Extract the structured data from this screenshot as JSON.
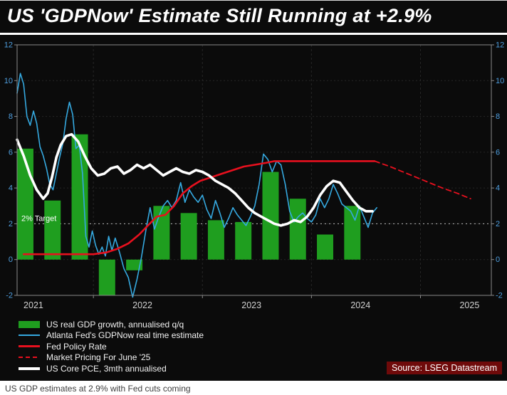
{
  "title": "US 'GDPNow' Estimate Still Running at +2.9%",
  "caption": "US GDP estimates at 2.9% with Fed cuts coming",
  "source_label": "Source: LSEG Datastream",
  "colors": {
    "panel_background": "#0b0b0b",
    "bars": "#1f9e1f",
    "gdpnow_line": "#35a9e0",
    "fed_line": "#e8101e",
    "market_pricing_line": "#e8101e",
    "core_pce_line": "#ffffff",
    "axis_labels": "#4f9fe0",
    "x_labels": "#d0d0d0",
    "grid": "#262626",
    "frame": "#8a8a8a",
    "target_line": "#bbbbbb",
    "source_bg": "#6f0a0a"
  },
  "legend": {
    "items": [
      {
        "label": "US real GDP growth, annualised q/q",
        "swatch": "bar",
        "color_key": "bars"
      },
      {
        "label": "Atlanta Fed's GDPNow real time estimate",
        "swatch": "line",
        "color_key": "gdpnow_line"
      },
      {
        "label": "Fed Policy Rate",
        "swatch": "line-thick",
        "color_key": "fed_line"
      },
      {
        "label": "Market Pricing For June '25",
        "swatch": "line-dashed",
        "color_key": "market_pricing_line"
      },
      {
        "label": "US Core PCE, 3mth annualised",
        "swatch": "line-xthick",
        "color_key": "core_pce_line"
      }
    ]
  },
  "chart_data": {
    "type": "bar+line",
    "title": "US 'GDPNow' Estimate Still Running at +2.9%",
    "x_range": [
      2021.3,
      2025.65
    ],
    "ylim": [
      -2,
      12
    ],
    "y_ticks": [
      -2,
      0,
      2,
      4,
      6,
      8,
      10,
      12
    ],
    "x_grid_years": [
      2022,
      2023,
      2024,
      2025
    ],
    "x_tick_labels": [
      {
        "x": 2021.45,
        "label": "2021"
      },
      {
        "x": 2022.45,
        "label": "2022"
      },
      {
        "x": 2023.45,
        "label": "2023"
      },
      {
        "x": 2024.45,
        "label": "2024"
      },
      {
        "x": 2025.45,
        "label": "2025"
      }
    ],
    "target_annotation": {
      "label": "2% Target",
      "y": 2
    },
    "bar_series": {
      "name": "US real GDP growth, annualised q/q",
      "color_key": "bars",
      "bar_width_years": 0.15,
      "points": [
        {
          "quarter": "2021 Q2",
          "x": 2021.375,
          "value": 6.2
        },
        {
          "quarter": "2021 Q3",
          "x": 2021.625,
          "value": 3.3
        },
        {
          "quarter": "2021 Q4",
          "x": 2021.875,
          "value": 7.0
        },
        {
          "quarter": "2022 Q1",
          "x": 2022.125,
          "value": -2.0
        },
        {
          "quarter": "2022 Q2",
          "x": 2022.375,
          "value": -0.6
        },
        {
          "quarter": "2022 Q3",
          "x": 2022.625,
          "value": 3.0
        },
        {
          "quarter": "2022 Q4",
          "x": 2022.875,
          "value": 2.6
        },
        {
          "quarter": "2023 Q1",
          "x": 2023.125,
          "value": 2.2
        },
        {
          "quarter": "2023 Q2",
          "x": 2023.375,
          "value": 2.1
        },
        {
          "quarter": "2023 Q3",
          "x": 2023.625,
          "value": 4.9
        },
        {
          "quarter": "2023 Q4",
          "x": 2023.875,
          "value": 3.4
        },
        {
          "quarter": "2024 Q1",
          "x": 2024.125,
          "value": 1.4
        },
        {
          "quarter": "2024 Q2",
          "x": 2024.375,
          "value": 3.0
        }
      ]
    },
    "line_series": [
      {
        "id": "gdpnow-line",
        "name": "Atlanta Fed's GDPNow real time estimate",
        "color_key": "gdpnow_line",
        "width": 1.6,
        "points": [
          [
            2021.3,
            9.3
          ],
          [
            2021.33,
            10.4
          ],
          [
            2021.36,
            9.8
          ],
          [
            2021.39,
            8.0
          ],
          [
            2021.42,
            7.5
          ],
          [
            2021.45,
            8.3
          ],
          [
            2021.48,
            7.6
          ],
          [
            2021.51,
            6.3
          ],
          [
            2021.54,
            5.8
          ],
          [
            2021.57,
            5.1
          ],
          [
            2021.6,
            4.2
          ],
          [
            2021.63,
            3.9
          ],
          [
            2021.66,
            4.8
          ],
          [
            2021.69,
            5.7
          ],
          [
            2021.72,
            6.5
          ],
          [
            2021.75,
            7.9
          ],
          [
            2021.78,
            8.8
          ],
          [
            2021.81,
            8.1
          ],
          [
            2021.84,
            6.2
          ],
          [
            2021.87,
            6.4
          ],
          [
            2021.9,
            4.8
          ],
          [
            2021.93,
            1.3
          ],
          [
            2021.96,
            0.7
          ],
          [
            2021.99,
            1.6
          ],
          [
            2022.02,
            0.8
          ],
          [
            2022.05,
            0.3
          ],
          [
            2022.08,
            0.7
          ],
          [
            2022.11,
            0.2
          ],
          [
            2022.14,
            1.3
          ],
          [
            2022.17,
            0.5
          ],
          [
            2022.2,
            1.2
          ],
          [
            2022.24,
            0.4
          ],
          [
            2022.28,
            -0.5
          ],
          [
            2022.32,
            -1.0
          ],
          [
            2022.36,
            -2.1
          ],
          [
            2022.4,
            -1.1
          ],
          [
            2022.44,
            0.1
          ],
          [
            2022.48,
            1.6
          ],
          [
            2022.52,
            2.9
          ],
          [
            2022.56,
            1.7
          ],
          [
            2022.6,
            2.4
          ],
          [
            2022.64,
            3.0
          ],
          [
            2022.68,
            3.3
          ],
          [
            2022.72,
            2.9
          ],
          [
            2022.76,
            3.3
          ],
          [
            2022.8,
            4.3
          ],
          [
            2022.84,
            3.2
          ],
          [
            2022.88,
            3.9
          ],
          [
            2022.92,
            3.5
          ],
          [
            2022.96,
            3.2
          ],
          [
            2023.0,
            3.6
          ],
          [
            2023.04,
            2.8
          ],
          [
            2023.08,
            2.3
          ],
          [
            2023.12,
            3.3
          ],
          [
            2023.16,
            2.6
          ],
          [
            2023.2,
            1.8
          ],
          [
            2023.24,
            2.3
          ],
          [
            2023.28,
            2.9
          ],
          [
            2023.32,
            2.5
          ],
          [
            2023.36,
            2.2
          ],
          [
            2023.4,
            1.9
          ],
          [
            2023.44,
            2.4
          ],
          [
            2023.48,
            3.0
          ],
          [
            2023.52,
            4.2
          ],
          [
            2023.56,
            5.9
          ],
          [
            2023.6,
            5.6
          ],
          [
            2023.64,
            4.9
          ],
          [
            2023.68,
            5.5
          ],
          [
            2023.72,
            5.3
          ],
          [
            2023.76,
            4.2
          ],
          [
            2023.8,
            2.7
          ],
          [
            2023.84,
            2.1
          ],
          [
            2023.88,
            2.4
          ],
          [
            2023.92,
            2.6
          ],
          [
            2023.96,
            2.3
          ],
          [
            2024.0,
            2.1
          ],
          [
            2024.04,
            2.5
          ],
          [
            2024.08,
            3.4
          ],
          [
            2024.12,
            2.9
          ],
          [
            2024.16,
            3.4
          ],
          [
            2024.2,
            4.2
          ],
          [
            2024.24,
            3.7
          ],
          [
            2024.28,
            3.1
          ],
          [
            2024.32,
            2.9
          ],
          [
            2024.36,
            2.7
          ],
          [
            2024.4,
            2.2
          ],
          [
            2024.44,
            3.0
          ],
          [
            2024.48,
            2.4
          ],
          [
            2024.52,
            1.8
          ],
          [
            2024.56,
            2.6
          ],
          [
            2024.6,
            2.9
          ]
        ]
      },
      {
        "id": "fed-policy-line",
        "name": "Fed Policy Rate",
        "color_key": "fed_line",
        "width": 2.6,
        "points": [
          [
            2021.36,
            0.3
          ],
          [
            2022.0,
            0.3
          ],
          [
            2022.12,
            0.4
          ],
          [
            2022.22,
            0.6
          ],
          [
            2022.32,
            0.9
          ],
          [
            2022.42,
            1.4
          ],
          [
            2022.5,
            1.9
          ],
          [
            2022.58,
            2.4
          ],
          [
            2022.66,
            2.5
          ],
          [
            2022.74,
            3.0
          ],
          [
            2022.82,
            3.7
          ],
          [
            2022.9,
            4.1
          ],
          [
            2022.98,
            4.4
          ],
          [
            2023.08,
            4.6
          ],
          [
            2023.18,
            4.8
          ],
          [
            2023.28,
            5.0
          ],
          [
            2023.38,
            5.2
          ],
          [
            2023.48,
            5.3
          ],
          [
            2023.58,
            5.4
          ],
          [
            2023.66,
            5.5
          ],
          [
            2024.58,
            5.5
          ]
        ]
      },
      {
        "id": "market-pricing-line",
        "name": "Market Pricing For June '25",
        "color_key": "market_pricing_line",
        "width": 1.8,
        "dash": "7 5",
        "points": [
          [
            2024.58,
            5.5
          ],
          [
            2024.72,
            5.2
          ],
          [
            2024.88,
            4.8
          ],
          [
            2025.04,
            4.4
          ],
          [
            2025.2,
            4.0
          ],
          [
            2025.34,
            3.7
          ],
          [
            2025.46,
            3.4
          ]
        ]
      },
      {
        "id": "core-pce-line",
        "name": "US Core PCE, 3mth annualised",
        "color_key": "core_pce_line",
        "width": 3.6,
        "points": [
          [
            2021.3,
            6.7
          ],
          [
            2021.36,
            5.8
          ],
          [
            2021.42,
            4.7
          ],
          [
            2021.48,
            3.9
          ],
          [
            2021.54,
            3.4
          ],
          [
            2021.58,
            3.7
          ],
          [
            2021.62,
            4.6
          ],
          [
            2021.66,
            5.7
          ],
          [
            2021.7,
            6.4
          ],
          [
            2021.75,
            6.9
          ],
          [
            2021.8,
            7.0
          ],
          [
            2021.86,
            6.6
          ],
          [
            2021.92,
            5.8
          ],
          [
            2021.98,
            5.1
          ],
          [
            2022.04,
            4.7
          ],
          [
            2022.1,
            4.8
          ],
          [
            2022.16,
            5.1
          ],
          [
            2022.22,
            5.2
          ],
          [
            2022.28,
            4.8
          ],
          [
            2022.34,
            5.0
          ],
          [
            2022.4,
            5.3
          ],
          [
            2022.46,
            5.1
          ],
          [
            2022.52,
            5.3
          ],
          [
            2022.58,
            5.0
          ],
          [
            2022.64,
            4.7
          ],
          [
            2022.7,
            4.9
          ],
          [
            2022.76,
            5.1
          ],
          [
            2022.82,
            4.9
          ],
          [
            2022.88,
            4.8
          ],
          [
            2022.94,
            5.0
          ],
          [
            2023.0,
            4.9
          ],
          [
            2023.06,
            4.7
          ],
          [
            2023.12,
            4.4
          ],
          [
            2023.18,
            4.2
          ],
          [
            2023.24,
            4.0
          ],
          [
            2023.3,
            3.7
          ],
          [
            2023.36,
            3.3
          ],
          [
            2023.42,
            2.9
          ],
          [
            2023.48,
            2.6
          ],
          [
            2023.54,
            2.4
          ],
          [
            2023.6,
            2.2
          ],
          [
            2023.66,
            2.0
          ],
          [
            2023.72,
            1.9
          ],
          [
            2023.78,
            2.0
          ],
          [
            2023.84,
            2.2
          ],
          [
            2023.9,
            2.1
          ],
          [
            2023.96,
            2.4
          ],
          [
            2024.02,
            2.9
          ],
          [
            2024.08,
            3.6
          ],
          [
            2024.14,
            4.1
          ],
          [
            2024.2,
            4.4
          ],
          [
            2024.26,
            4.3
          ],
          [
            2024.32,
            3.8
          ],
          [
            2024.38,
            3.3
          ],
          [
            2024.44,
            2.9
          ],
          [
            2024.5,
            2.7
          ],
          [
            2024.56,
            2.7
          ]
        ]
      }
    ]
  }
}
